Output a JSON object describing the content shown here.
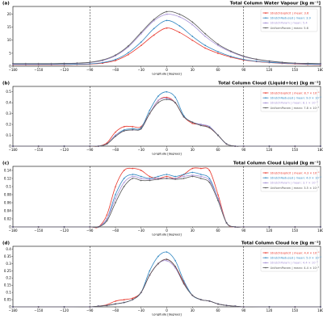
{
  "colors": {
    "StretchExplicit": "#e8352a",
    "StretchReduced": "#2e86c1",
    "StretchParam": "#a58fd6",
    "UniformParam": "#555555"
  },
  "chart_data": [
    {
      "type": "line",
      "label": "(a)",
      "title": "Total Column Water Vapour [kg m⁻²]",
      "xlabel": "Longitude [degrees]",
      "xlim": [
        -180,
        180
      ],
      "ylim": [
        0,
        23
      ],
      "xticks": [
        "−180",
        "−150",
        "−120",
        "−90",
        "−60",
        "−30",
        "0",
        "30",
        "60",
        "90",
        "120",
        "150",
        "180"
      ],
      "yticks": [
        0,
        5,
        10,
        15,
        20
      ],
      "vlines": [
        -90,
        90
      ],
      "x": [
        -180,
        -165,
        -150,
        -135,
        -120,
        -105,
        -90,
        -75,
        -60,
        -45,
        -30,
        -15,
        0,
        15,
        30,
        45,
        60,
        75,
        90,
        105,
        120,
        135,
        150,
        165,
        180
      ],
      "series": [
        {
          "name": "StretchExplicit | mean: 3.6",
          "key": "StretchExplicit",
          "values": [
            0.6,
            0.6,
            0.6,
            0.6,
            0.6,
            0.7,
            0.8,
            1.2,
            2.2,
            4.5,
            8,
            12,
            14.7,
            13,
            10,
            7,
            5,
            3.5,
            2.4,
            1.8,
            1.4,
            1.1,
            0.9,
            0.7,
            0.6
          ]
        },
        {
          "name": "StretchReduced | mean: 3.9",
          "key": "StretchReduced",
          "values": [
            0.7,
            0.7,
            0.7,
            0.7,
            0.7,
            0.8,
            0.9,
            1.4,
            2.6,
            5.2,
            9.3,
            14.5,
            17.6,
            15.5,
            11.5,
            8,
            5.6,
            3.8,
            2.6,
            1.9,
            1.5,
            1.2,
            1,
            0.8,
            0.7
          ]
        },
        {
          "name": "StretchParam | mean: 5.4",
          "key": "StretchParam",
          "values": [
            0.9,
            0.9,
            0.9,
            0.9,
            1,
            1.1,
            1.4,
            2.2,
            4,
            7.4,
            12.5,
            17.5,
            20,
            19,
            16,
            11.5,
            8,
            5.5,
            3.7,
            2.6,
            1.9,
            1.4,
            1.1,
            1,
            0.9
          ]
        },
        {
          "name": "UniformParam | mean: 5.6",
          "key": "UniformParam",
          "values": [
            1,
            1,
            1,
            1,
            1.1,
            1.2,
            1.5,
            2.4,
            4.3,
            7.8,
            13,
            18,
            21,
            20,
            17,
            12.5,
            8.5,
            5.8,
            3.9,
            2.7,
            2,
            1.5,
            1.2,
            1.1,
            1
          ]
        }
      ],
      "legend": "top-right"
    },
    {
      "type": "line",
      "label": "(b)",
      "title": "Total Column Cloud (Liquid+Ice) [kg m⁻²]",
      "xlabel": "Longitude [degrees]",
      "xlim": [
        -180,
        180
      ],
      "ylim": [
        0,
        0.55
      ],
      "xticks": [
        "−180",
        "−150",
        "−120",
        "−90",
        "−60",
        "−30",
        "0",
        "30",
        "60",
        "90",
        "120",
        "150",
        "180"
      ],
      "yticks": [
        0,
        0.1,
        0.2,
        0.3,
        0.4,
        0.5
      ],
      "vlines": [
        -90,
        90
      ],
      "x": [
        -180,
        -150,
        -120,
        -90,
        -80,
        -70,
        -60,
        -50,
        -40,
        -30,
        -20,
        -10,
        0,
        10,
        20,
        30,
        40,
        50,
        60,
        70,
        80,
        90,
        120,
        150,
        180
      ],
      "series": [
        {
          "name": "StretchExplicit | mean: 8.7 × 10⁻³",
          "key": "StretchExplicit",
          "values": [
            0,
            0,
            0,
            0,
            0,
            0.03,
            0.13,
            0.18,
            0.18,
            0.18,
            0.3,
            0.42,
            0.45,
            0.4,
            0.27,
            0.21,
            0.2,
            0.17,
            0.1,
            0.02,
            0,
            0,
            0,
            0,
            0
          ]
        },
        {
          "name": "StretchReduced | mean: 9.0 × 10⁻³",
          "key": "StretchReduced",
          "values": [
            0,
            0,
            0,
            0,
            0,
            0.02,
            0.1,
            0.15,
            0.16,
            0.17,
            0.33,
            0.46,
            0.5,
            0.45,
            0.28,
            0.22,
            0.2,
            0.18,
            0.1,
            0.02,
            0,
            0,
            0,
            0,
            0
          ]
        },
        {
          "name": "StretchParam | mean: 8.1 × 10⁻³",
          "key": "StretchParam",
          "values": [
            0,
            0,
            0,
            0,
            0,
            0.02,
            0.1,
            0.14,
            0.15,
            0.16,
            0.3,
            0.42,
            0.44,
            0.4,
            0.27,
            0.22,
            0.2,
            0.18,
            0.1,
            0.02,
            0,
            0,
            0,
            0,
            0
          ]
        },
        {
          "name": "UniformParam | mean: 7.8 × 10⁻³",
          "key": "UniformParam",
          "values": [
            0,
            0,
            0,
            0,
            0,
            0.02,
            0.09,
            0.14,
            0.15,
            0.16,
            0.3,
            0.4,
            0.43,
            0.4,
            0.27,
            0.22,
            0.19,
            0.17,
            0.1,
            0.02,
            0,
            0,
            0,
            0,
            0
          ]
        }
      ],
      "legend": "top-right"
    },
    {
      "type": "line",
      "label": "(c)",
      "title": "Total Column Cloud Liquid [kg m⁻²]",
      "xlabel": "Longitude [degrees]",
      "xlim": [
        -180,
        180
      ],
      "ylim": [
        0,
        0.15
      ],
      "xticks": [
        "−180",
        "−150",
        "−120",
        "−90",
        "−60",
        "−30",
        "0",
        "30",
        "60",
        "90",
        "120",
        "150",
        "180"
      ],
      "yticks": [
        0,
        0.02,
        0.04,
        0.06,
        0.08,
        0.1,
        0.12,
        0.14
      ],
      "vlines": [
        -90,
        90
      ],
      "x": [
        -180,
        -150,
        -120,
        -90,
        -80,
        -70,
        -60,
        -50,
        -40,
        -30,
        -20,
        -10,
        0,
        10,
        20,
        30,
        40,
        50,
        60,
        70,
        80,
        90,
        120,
        150,
        180
      ],
      "series": [
        {
          "name": "StretchExplicit | mean: 4.3 × 10⁻³",
          "key": "StretchExplicit",
          "values": [
            0,
            0,
            0,
            0,
            0,
            0.03,
            0.1,
            0.14,
            0.145,
            0.14,
            0.125,
            0.12,
            0.125,
            0.12,
            0.13,
            0.145,
            0.145,
            0.14,
            0.08,
            0.01,
            0,
            0,
            0,
            0,
            0
          ]
        },
        {
          "name": "StretchReduced | mean: 4.0 × 10⁻³",
          "key": "StretchReduced",
          "values": [
            0,
            0,
            0,
            0,
            0,
            0.02,
            0.08,
            0.12,
            0.13,
            0.125,
            0.12,
            0.125,
            0.13,
            0.125,
            0.13,
            0.135,
            0.13,
            0.12,
            0.07,
            0.01,
            0,
            0,
            0,
            0,
            0
          ]
        },
        {
          "name": "StretchParam | mean: 3.7 × 10⁻³",
          "key": "StretchParam",
          "values": [
            0,
            0,
            0,
            0,
            0,
            0.02,
            0.07,
            0.11,
            0.125,
            0.12,
            0.118,
            0.12,
            0.12,
            0.12,
            0.125,
            0.128,
            0.125,
            0.115,
            0.07,
            0.01,
            0,
            0,
            0,
            0,
            0
          ]
        },
        {
          "name": "UniformParam | mean: 3.5 × 10⁻³",
          "key": "UniformParam",
          "values": [
            0,
            0,
            0,
            0,
            0,
            0.015,
            0.06,
            0.1,
            0.12,
            0.115,
            0.115,
            0.118,
            0.12,
            0.118,
            0.12,
            0.125,
            0.12,
            0.11,
            0.065,
            0.01,
            0,
            0,
            0,
            0,
            0
          ]
        }
      ],
      "legend": "top-right"
    },
    {
      "type": "line",
      "label": "(d)",
      "title": "Total Column Cloud Ice [kg m⁻²]",
      "xlabel": "Longitude [degrees]",
      "xlim": [
        -180,
        180
      ],
      "ylim": [
        0,
        0.42
      ],
      "xticks": [
        "−180",
        "−150",
        "−120",
        "−90",
        "−60",
        "−30",
        "0",
        "30",
        "60",
        "90",
        "120",
        "150",
        "180"
      ],
      "yticks": [
        0,
        0.05,
        0.1,
        0.15,
        0.2,
        0.25,
        0.3,
        0.35,
        0.4
      ],
      "vlines": [
        -90,
        90
      ],
      "x": [
        -180,
        -150,
        -120,
        -90,
        -80,
        -70,
        -60,
        -50,
        -40,
        -30,
        -20,
        -10,
        0,
        10,
        20,
        30,
        40,
        50,
        60,
        70,
        80,
        90,
        120,
        150,
        180
      ],
      "series": [
        {
          "name": "StretchExplicit | mean: 4.4 × 10⁻³",
          "key": "StretchExplicit",
          "values": [
            0,
            0,
            0,
            0,
            0.005,
            0.015,
            0.04,
            0.05,
            0.06,
            0.1,
            0.22,
            0.3,
            0.33,
            0.28,
            0.17,
            0.08,
            0.05,
            0.04,
            0.02,
            0.01,
            0.005,
            0,
            0,
            0,
            0
          ]
        },
        {
          "name": "StretchReduced | mean: 5.0 × 10⁻³",
          "key": "StretchReduced",
          "values": [
            0,
            0,
            0,
            0,
            0.005,
            0.01,
            0.02,
            0.03,
            0.05,
            0.1,
            0.25,
            0.35,
            0.38,
            0.32,
            0.18,
            0.08,
            0.05,
            0.04,
            0.02,
            0.01,
            0.005,
            0,
            0,
            0,
            0
          ]
        },
        {
          "name": "StretchParam | mean: 4.4 × 10⁻³",
          "key": "StretchParam",
          "values": [
            0,
            0,
            0,
            0,
            0.005,
            0.01,
            0.02,
            0.03,
            0.05,
            0.1,
            0.22,
            0.3,
            0.32,
            0.27,
            0.16,
            0.08,
            0.05,
            0.04,
            0.02,
            0.01,
            0.005,
            0,
            0,
            0,
            0
          ]
        },
        {
          "name": "UniformParam | mean: 4.4 × 10⁻³",
          "key": "UniformParam",
          "values": [
            0,
            0,
            0,
            0,
            0.005,
            0.01,
            0.02,
            0.03,
            0.05,
            0.1,
            0.22,
            0.3,
            0.33,
            0.28,
            0.16,
            0.08,
            0.05,
            0.04,
            0.02,
            0.01,
            0.005,
            0,
            0,
            0,
            0
          ]
        }
      ],
      "legend": "top-right"
    }
  ]
}
